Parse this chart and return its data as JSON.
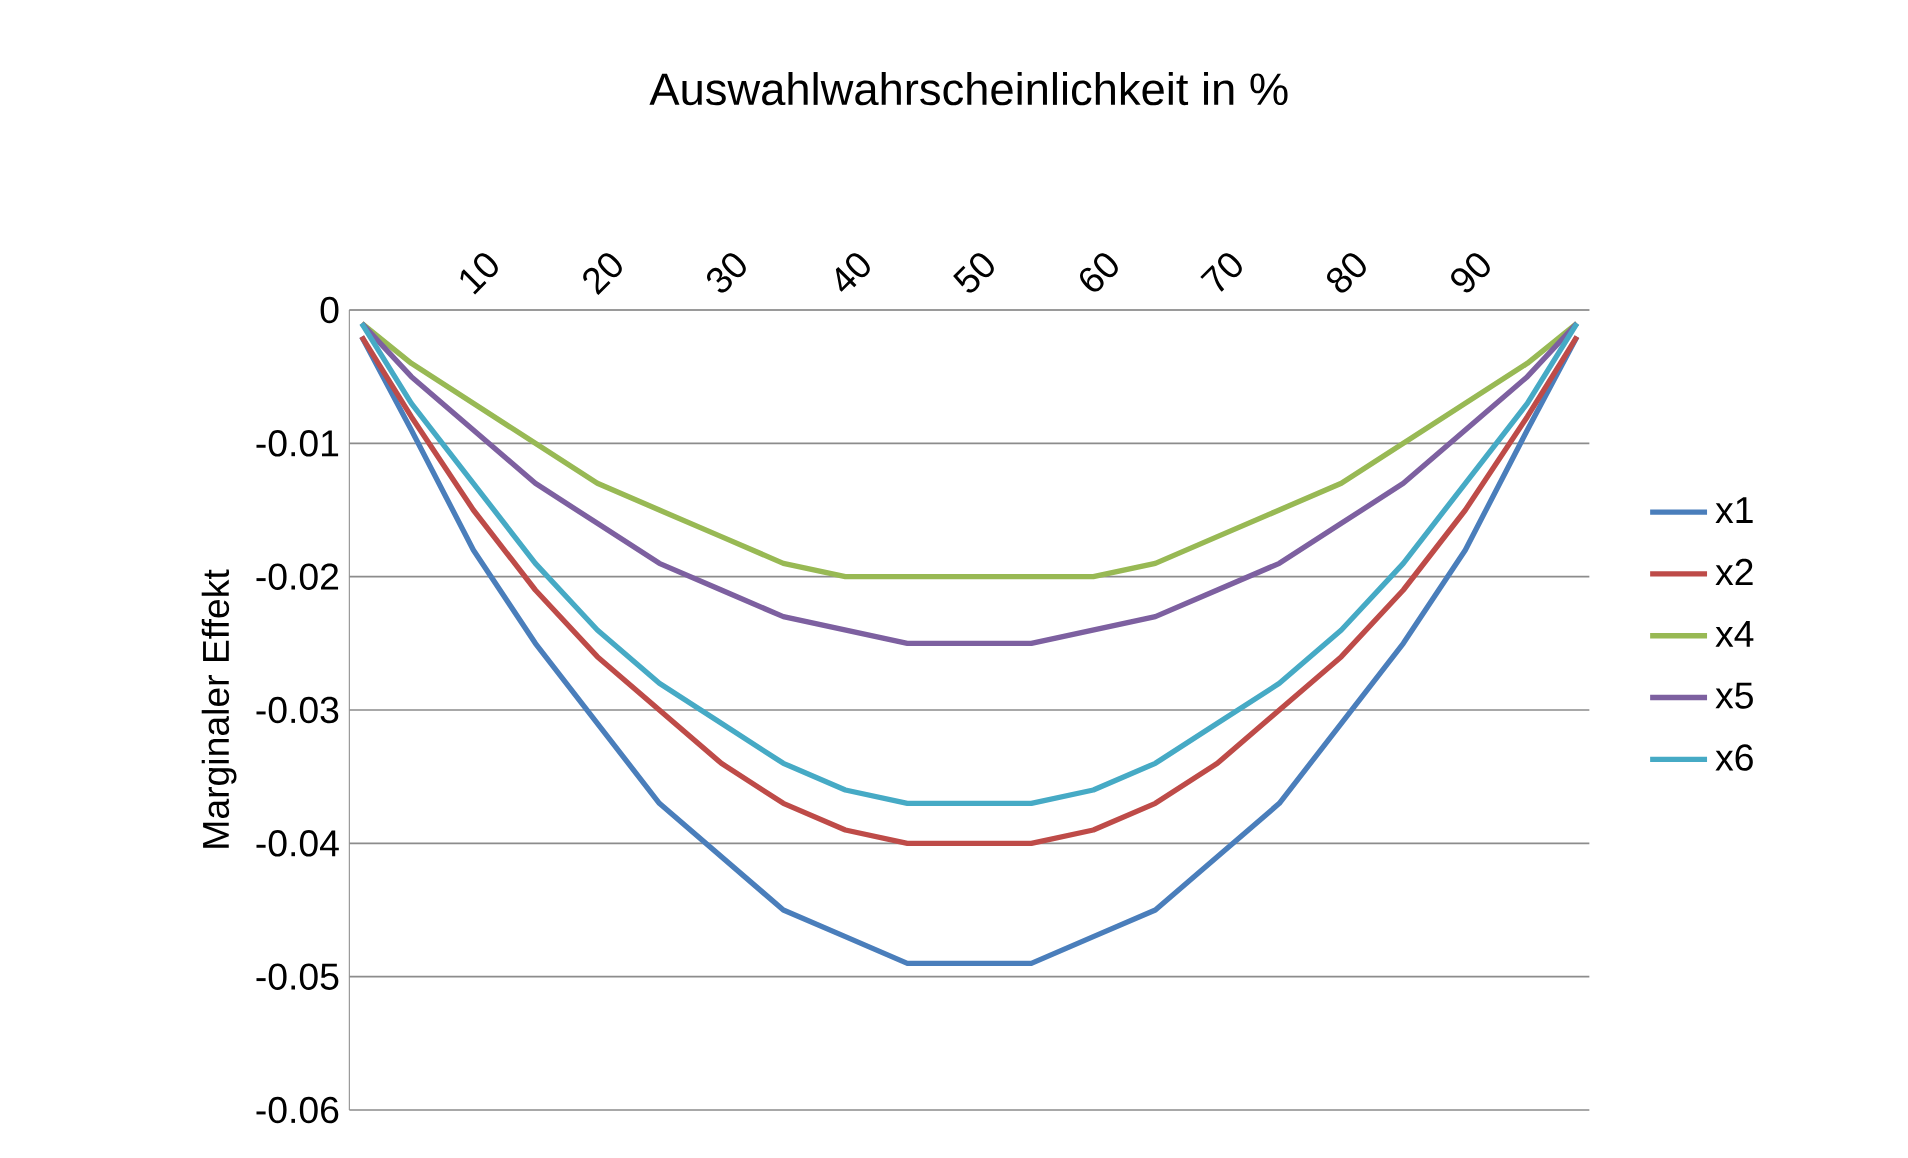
{
  "chart_data": {
    "type": "line",
    "title": "Auswahlwahrscheinlichkeit in %",
    "ylabel": "Marginaler Effekt",
    "x": [
      1,
      5,
      10,
      15,
      20,
      25,
      30,
      35,
      40,
      45,
      50,
      55,
      60,
      65,
      70,
      75,
      80,
      85,
      90,
      95,
      99
    ],
    "xlim": [
      0,
      100
    ],
    "xticks": [
      10,
      20,
      30,
      40,
      50,
      60,
      70,
      80,
      90
    ],
    "ylim": [
      -0.06,
      0
    ],
    "yticks": [
      -0.06,
      -0.05,
      -0.04,
      -0.03,
      -0.02,
      -0.01,
      0
    ],
    "grid": "y",
    "legend": "right",
    "marker": "none",
    "line_style": "solid",
    "series": [
      {
        "name": "x1",
        "color": "#4a7ebb",
        "values": [
          -0.002,
          -0.009,
          -0.018,
          -0.025,
          -0.031,
          -0.037,
          -0.041,
          -0.045,
          -0.047,
          -0.049,
          -0.049,
          -0.049,
          -0.047,
          -0.045,
          -0.041,
          -0.037,
          -0.031,
          -0.025,
          -0.018,
          -0.009,
          -0.002
        ]
      },
      {
        "name": "x2",
        "color": "#be4b48",
        "values": [
          -0.002,
          -0.008,
          -0.015,
          -0.021,
          -0.026,
          -0.03,
          -0.034,
          -0.037,
          -0.039,
          -0.04,
          -0.04,
          -0.04,
          -0.039,
          -0.037,
          -0.034,
          -0.03,
          -0.026,
          -0.021,
          -0.015,
          -0.008,
          -0.002
        ]
      },
      {
        "name": "x4",
        "color": "#98b954",
        "values": [
          -0.001,
          -0.004,
          -0.007,
          -0.01,
          -0.013,
          -0.015,
          -0.017,
          -0.019,
          -0.02,
          -0.02,
          -0.02,
          -0.02,
          -0.02,
          -0.019,
          -0.017,
          -0.015,
          -0.013,
          -0.01,
          -0.007,
          -0.004,
          -0.001
        ]
      },
      {
        "name": "x5",
        "color": "#7d60a0",
        "values": [
          -0.001,
          -0.005,
          -0.009,
          -0.013,
          -0.016,
          -0.019,
          -0.021,
          -0.023,
          -0.024,
          -0.025,
          -0.025,
          -0.025,
          -0.024,
          -0.023,
          -0.021,
          -0.019,
          -0.016,
          -0.013,
          -0.009,
          -0.005,
          -0.001
        ]
      },
      {
        "name": "x6",
        "color": "#46aac5",
        "values": [
          -0.001,
          -0.007,
          -0.013,
          -0.019,
          -0.024,
          -0.028,
          -0.031,
          -0.034,
          -0.036,
          -0.037,
          -0.037,
          -0.037,
          -0.036,
          -0.034,
          -0.031,
          -0.028,
          -0.024,
          -0.019,
          -0.013,
          -0.007,
          -0.001
        ]
      }
    ]
  }
}
